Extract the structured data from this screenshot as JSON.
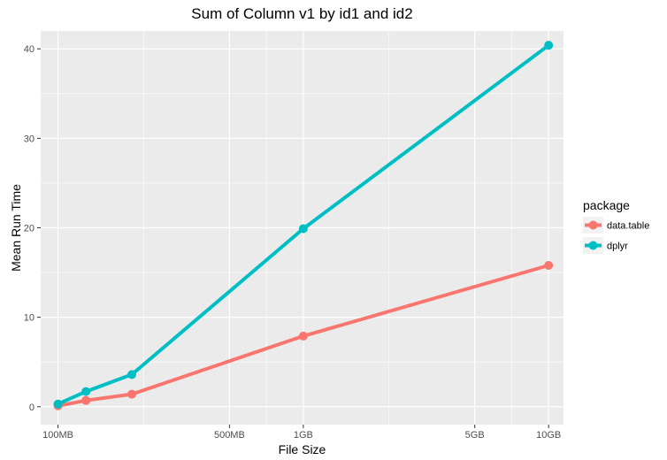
{
  "chart_data": {
    "type": "line",
    "title": "Sum of Column v1 by id1 and id2",
    "xlabel": "File Size",
    "ylabel": "Mean Run Time",
    "x_scale": "log10",
    "x_unit": "MB",
    "x_ticks": [
      {
        "value": 100,
        "label": "100MB"
      },
      {
        "value": 500,
        "label": "500MB"
      },
      {
        "value": 1000,
        "label": "1GB"
      },
      {
        "value": 5000,
        "label": "5GB"
      },
      {
        "value": 10000,
        "label": "10GB"
      }
    ],
    "xlim": [
      85,
      11500
    ],
    "ylim": [
      -2,
      42
    ],
    "y_ticks": [
      0,
      10,
      20,
      30,
      40
    ],
    "grid": true,
    "legend": {
      "title": "package",
      "position": "right"
    },
    "series": [
      {
        "name": "data.table",
        "color": "#F8766D",
        "x": [
          100,
          130,
          200,
          1000,
          10000
        ],
        "y": [
          0.1,
          0.7,
          1.4,
          7.9,
          15.8
        ]
      },
      {
        "name": "dplyr",
        "color": "#00BFC4",
        "x": [
          100,
          130,
          200,
          1000,
          10000
        ],
        "y": [
          0.3,
          1.7,
          3.6,
          19.9,
          40.4
        ]
      }
    ]
  }
}
